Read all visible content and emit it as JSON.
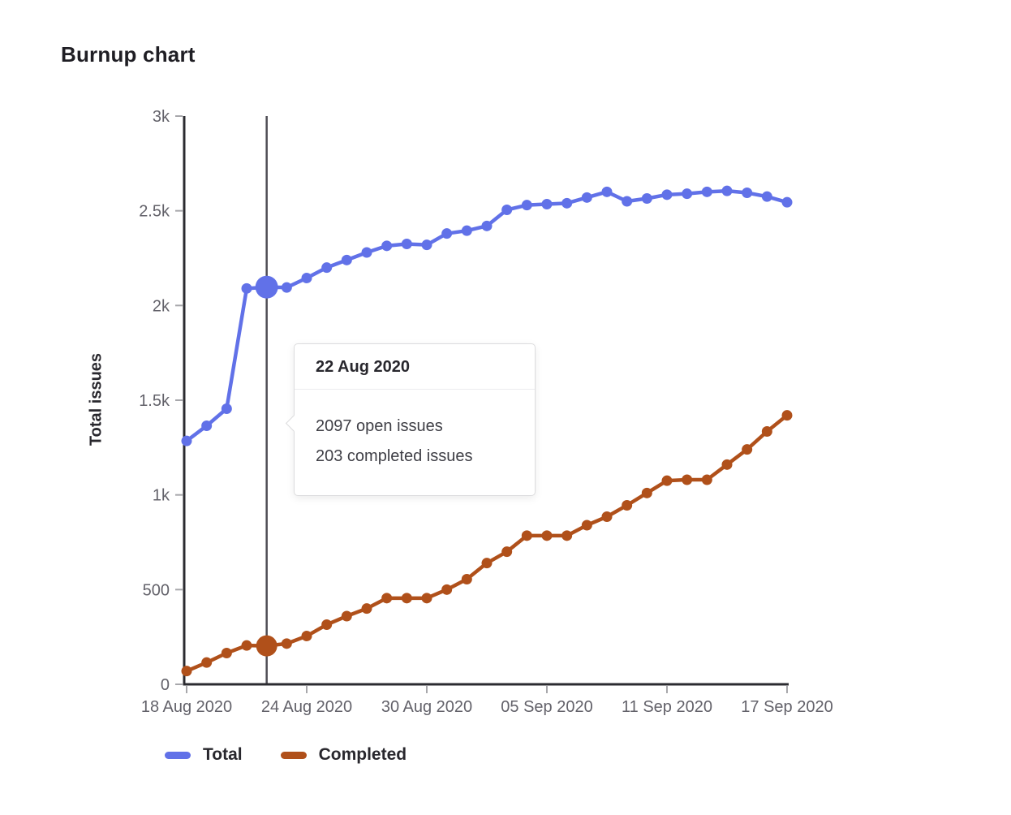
{
  "page": {
    "title": "Burnup chart"
  },
  "colors": {
    "axis": "#2b2b30",
    "tick_mark": "#a7a7ab",
    "tick_label": "#63626a",
    "crosshair": "#4f4e55",
    "tooltip_border": "#dcdcde",
    "heading_text": "#1f1e24",
    "body_text": "#3f3f46",
    "total_series": "#6171e8",
    "completed_series": "#b0501a"
  },
  "chart_data": {
    "type": "line",
    "title": "Burnup chart",
    "xlabel": "",
    "ylabel": "Total issues",
    "ylim": [
      0,
      3000
    ],
    "grid": false,
    "legend_position": "bottom",
    "categories": [
      "18 Aug 2020",
      "19 Aug 2020",
      "20 Aug 2020",
      "21 Aug 2020",
      "22 Aug 2020",
      "23 Aug 2020",
      "24 Aug 2020",
      "25 Aug 2020",
      "26 Aug 2020",
      "27 Aug 2020",
      "28 Aug 2020",
      "29 Aug 2020",
      "30 Aug 2020",
      "31 Aug 2020",
      "01 Sep 2020",
      "02 Sep 2020",
      "03 Sep 2020",
      "04 Sep 2020",
      "05 Sep 2020",
      "06 Sep 2020",
      "07 Sep 2020",
      "08 Sep 2020",
      "09 Sep 2020",
      "10 Sep 2020",
      "11 Sep 2020",
      "12 Sep 2020",
      "13 Sep 2020",
      "14 Sep 2020",
      "15 Sep 2020",
      "16 Sep 2020",
      "17 Sep 2020"
    ],
    "x_ticks": [
      {
        "index": 0,
        "label": "18 Aug 2020"
      },
      {
        "index": 6,
        "label": "24 Aug 2020"
      },
      {
        "index": 12,
        "label": "30 Aug 2020"
      },
      {
        "index": 18,
        "label": "05 Sep 2020"
      },
      {
        "index": 24,
        "label": "11 Sep 2020"
      },
      {
        "index": 30,
        "label": "17 Sep 2020"
      }
    ],
    "y_ticks": [
      {
        "value": 0,
        "label": "0"
      },
      {
        "value": 500,
        "label": "500"
      },
      {
        "value": 1000,
        "label": "1k"
      },
      {
        "value": 1500,
        "label": "1.5k"
      },
      {
        "value": 2000,
        "label": "2k"
      },
      {
        "value": 2500,
        "label": "2.5k"
      },
      {
        "value": 3000,
        "label": "3k"
      }
    ],
    "series": [
      {
        "name": "Total",
        "color": "#6171e8",
        "values": [
          1285,
          1365,
          1455,
          2090,
          2097,
          2095,
          2145,
          2200,
          2240,
          2280,
          2315,
          2325,
          2320,
          2380,
          2395,
          2420,
          2505,
          2530,
          2535,
          2540,
          2570,
          2600,
          2550,
          2565,
          2585,
          2590,
          2600,
          2605,
          2595,
          2575,
          2545
        ]
      },
      {
        "name": "Completed",
        "color": "#b0501a",
        "values": [
          70,
          115,
          165,
          205,
          203,
          215,
          255,
          315,
          360,
          400,
          455,
          455,
          455,
          500,
          555,
          640,
          700,
          785,
          785,
          785,
          840,
          885,
          945,
          1010,
          1075,
          1080,
          1080,
          1160,
          1240,
          1335,
          1420
        ]
      }
    ],
    "selected_index": 4,
    "selected_category": "22 Aug 2020"
  },
  "tooltip": {
    "title": "22 Aug 2020",
    "lines": [
      "2097 open issues",
      "203 completed issues"
    ]
  },
  "legend": {
    "items": [
      "Total",
      "Completed"
    ]
  }
}
